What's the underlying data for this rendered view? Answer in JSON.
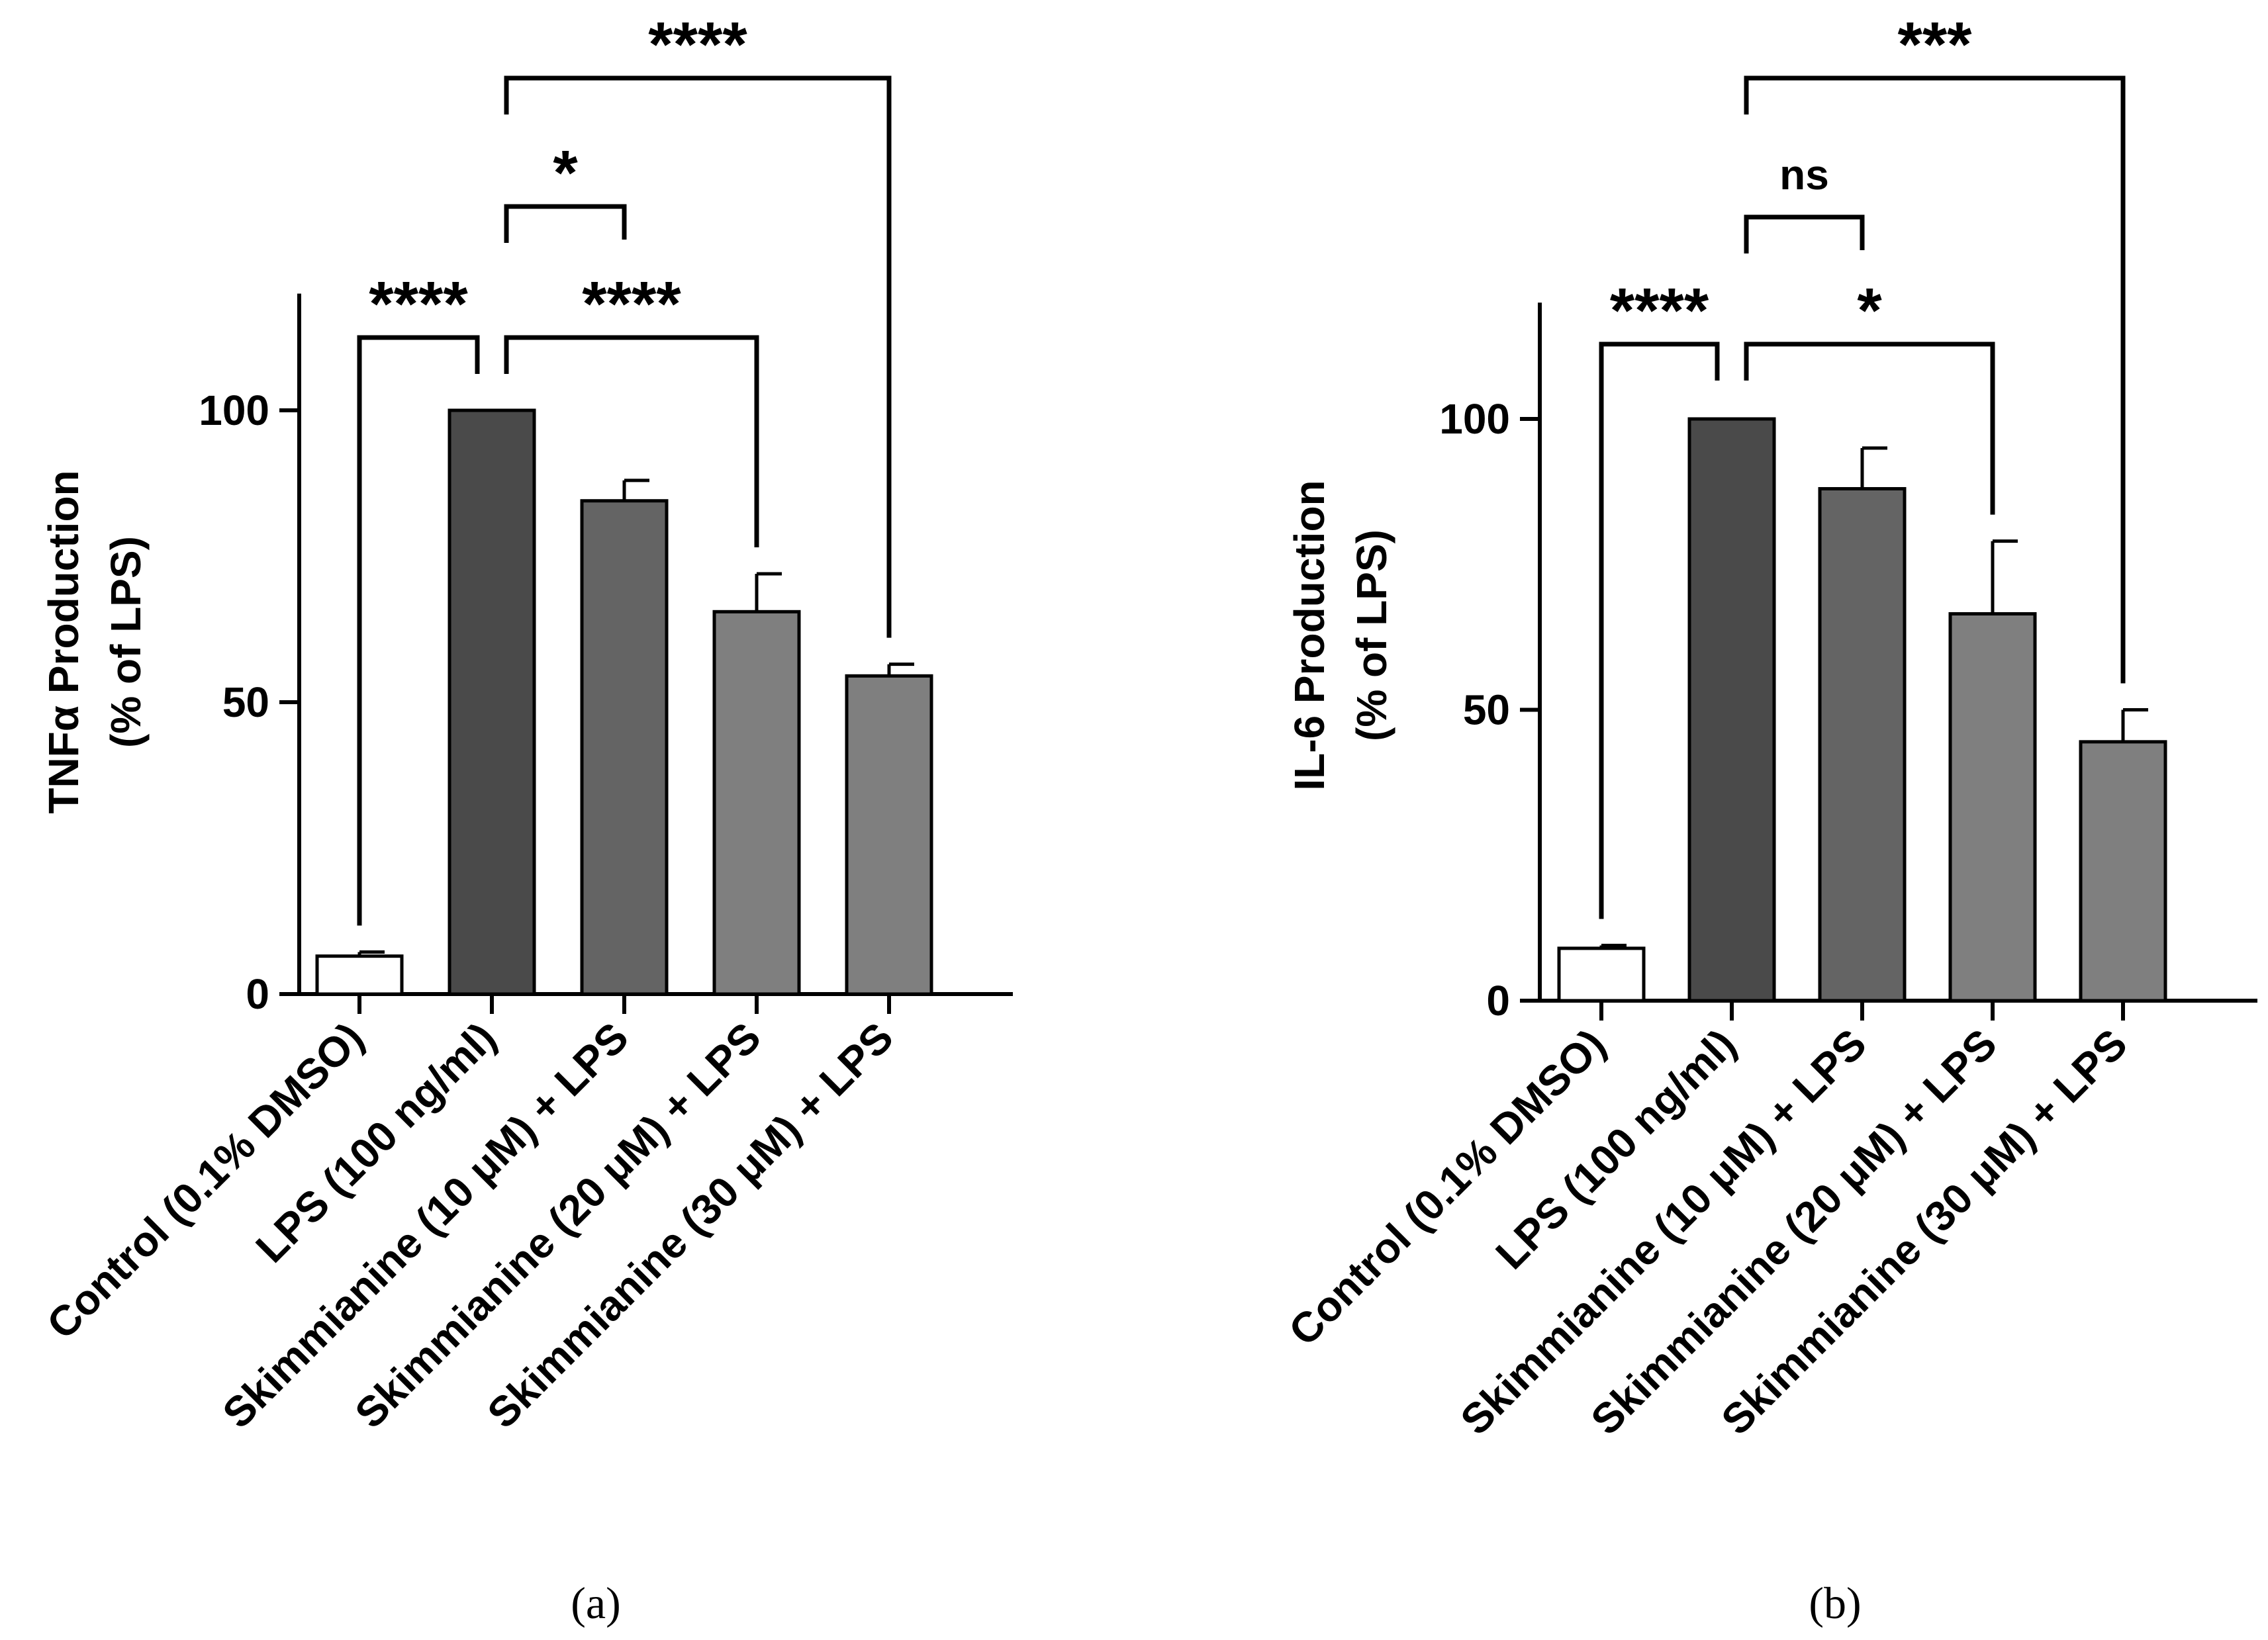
{
  "figure": {
    "panels": [
      "(a)",
      "(b)"
    ]
  },
  "colors": {
    "control": "#ffffff",
    "lps": "#4a4a4a",
    "sk10": "#646464",
    "sk20": "#7f7f7f",
    "sk30": "#7f7f7f",
    "stroke": "#000000"
  },
  "chart_data": [
    {
      "type": "bar",
      "panel": "(a)",
      "ylabel_lines": [
        "TNFα Production",
        "(% of LPS)"
      ],
      "ylim": [
        0,
        120
      ],
      "yticks": [
        0,
        50,
        100
      ],
      "categories": [
        "Control (0.1% DMSO)",
        "LPS (100 ng/ml)",
        "Skimmianine (10 μM) + LPS",
        "Skimmianine (20 μM) + LPS",
        "Skimmianine (30 μM) + LPS"
      ],
      "values": [
        6.5,
        100,
        84.5,
        65.5,
        54.5
      ],
      "errors": [
        0.7,
        0,
        3.5,
        6.5,
        2.0
      ],
      "significance": [
        {
          "from": 0,
          "to": 1,
          "label": "****",
          "level": 0
        },
        {
          "from": 1,
          "to": 3,
          "label": "****",
          "level": 0
        },
        {
          "from": 1,
          "to": 2,
          "label": "*",
          "level": 1
        },
        {
          "from": 1,
          "to": 4,
          "label": "****",
          "level": 2
        }
      ]
    },
    {
      "type": "bar",
      "panel": "(b)",
      "ylabel_lines": [
        "IL-6 Production",
        "(% of LPS)"
      ],
      "ylim": [
        0,
        120
      ],
      "yticks": [
        0,
        50,
        100
      ],
      "categories": [
        "Control (0.1% DMSO)",
        "LPS (100 ng/ml)",
        "Skimmianine (10 μM) + LPS",
        "Skimmianine (20 μM) + LPS",
        "Skimmianine (30 μM) + LPS"
      ],
      "values": [
        9,
        100,
        88,
        66.5,
        44.5
      ],
      "errors": [
        0.5,
        0,
        7,
        12.5,
        5.5
      ],
      "significance": [
        {
          "from": 0,
          "to": 1,
          "label": "****",
          "level": 0
        },
        {
          "from": 1,
          "to": 3,
          "label": "*",
          "level": 0
        },
        {
          "from": 1,
          "to": 2,
          "label": "ns",
          "level": 1
        },
        {
          "from": 1,
          "to": 4,
          "label": "***",
          "level": 2
        }
      ]
    }
  ]
}
